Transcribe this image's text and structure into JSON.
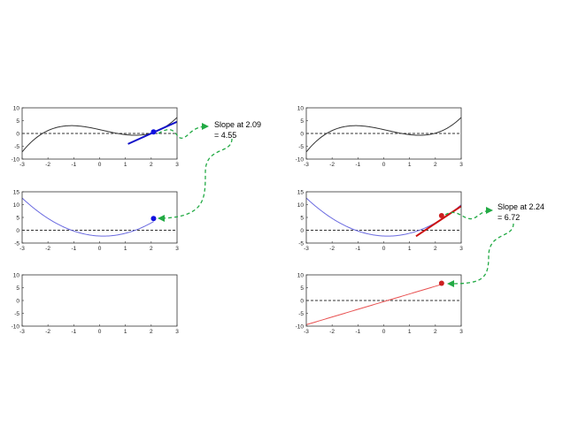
{
  "chart_data": [
    {
      "type": "line",
      "id": "f-left",
      "xlim": [
        -3,
        3
      ],
      "ylim": [
        -10,
        10
      ],
      "xticks": [
        "-3",
        "-2",
        "-1",
        "0",
        "1",
        "2",
        "3"
      ],
      "yticks": [
        "10",
        "5",
        "0",
        "-5",
        "-10"
      ],
      "grid": false,
      "zero_line": "dashed",
      "series": [
        {
          "kind": "curve",
          "fn": "f",
          "x_range": [
            -3,
            3
          ],
          "color": "#333333"
        },
        {
          "kind": "tangent",
          "fn": "f",
          "at": 2.09,
          "slope": 4.55,
          "x_range": [
            1.1,
            3.0
          ],
          "color": "#1010c8"
        },
        {
          "kind": "point",
          "x": 2.09,
          "y": 0.61,
          "color": "#1010e0"
        }
      ]
    },
    {
      "type": "line",
      "id": "df-left",
      "xlim": [
        -3,
        3
      ],
      "ylim": [
        -5,
        15
      ],
      "xticks": [
        "-3",
        "-2",
        "-1",
        "0",
        "1",
        "2",
        "3"
      ],
      "yticks": [
        "15",
        "10",
        "5",
        "0",
        "-5"
      ],
      "grid": false,
      "zero_line": "dashed",
      "series": [
        {
          "kind": "curve",
          "fn": "df",
          "x_range": [
            -3,
            2.09
          ],
          "color": "#6a6ae0"
        },
        {
          "kind": "point",
          "x": 2.09,
          "y": 4.55,
          "color": "#1010e0"
        }
      ]
    },
    {
      "type": "line",
      "id": "empty-left",
      "xlim": [
        -3,
        3
      ],
      "ylim": [
        -10,
        10
      ],
      "xticks": [
        "-3",
        "-2",
        "-1",
        "0",
        "1",
        "2",
        "3"
      ],
      "yticks": [
        "10",
        "5",
        "0",
        "-5",
        "-10"
      ],
      "grid": false,
      "series": []
    },
    {
      "type": "line",
      "id": "f-right",
      "xlim": [
        -3,
        3
      ],
      "ylim": [
        -10,
        10
      ],
      "xticks": [
        "-3",
        "-2",
        "-1",
        "0",
        "1",
        "2",
        "3"
      ],
      "yticks": [
        "10",
        "5",
        "0",
        "-5",
        "-10"
      ],
      "grid": false,
      "zero_line": "dashed",
      "series": [
        {
          "kind": "curve",
          "fn": "f",
          "x_range": [
            -3,
            3
          ],
          "color": "#333333"
        }
      ]
    },
    {
      "type": "line",
      "id": "df-right",
      "xlim": [
        -3,
        3
      ],
      "ylim": [
        -5,
        15
      ],
      "xticks": [
        "-3",
        "-2",
        "-1",
        "0",
        "1",
        "2",
        "3"
      ],
      "yticks": [
        "15",
        "10",
        "5",
        "0",
        "-5"
      ],
      "grid": false,
      "zero_line": "dashed",
      "series": [
        {
          "kind": "curve",
          "fn": "df",
          "x_range": [
            -3,
            3
          ],
          "color": "#6a6ae0"
        },
        {
          "kind": "tangent",
          "fn": "df",
          "at": 2.24,
          "slope": 6.72,
          "x_range": [
            1.25,
            3.0
          ],
          "color": "#cc1010"
        },
        {
          "kind": "point",
          "x": 2.24,
          "y": 5.7,
          "color": "#cc2020"
        }
      ]
    },
    {
      "type": "line",
      "id": "ddf-right",
      "xlim": [
        -3,
        3
      ],
      "ylim": [
        -10,
        10
      ],
      "xticks": [
        "-3",
        "-2",
        "-1",
        "0",
        "1",
        "2",
        "3"
      ],
      "yticks": [
        "10",
        "5",
        "0",
        "-5",
        "-10"
      ],
      "grid": false,
      "zero_line": "dashed",
      "series": [
        {
          "kind": "curve",
          "fn": "ddf",
          "x_range": [
            -3,
            2.24
          ],
          "color": "#e85050"
        },
        {
          "kind": "point",
          "x": 2.24,
          "y": 6.72,
          "color": "#cc2020"
        }
      ]
    }
  ],
  "annotations": {
    "left": {
      "line1": "Slope at 2.09",
      "line2": "= 4.55",
      "color": "#22aa44"
    },
    "right": {
      "line1": "Slope at 2.24",
      "line2": "= 6.72",
      "color": "#22aa44"
    }
  }
}
